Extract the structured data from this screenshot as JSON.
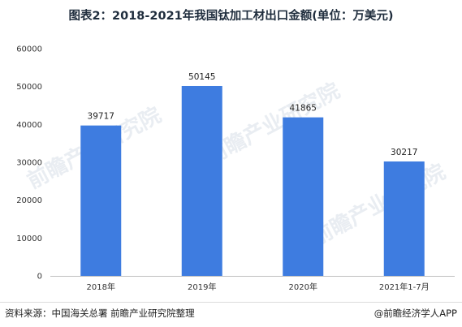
{
  "chart_data": {
    "type": "bar",
    "title": "图表2：2018-2021年我国钛加工材出口金额(单位：万美元)",
    "categories": [
      "2018年",
      "2019年",
      "2020年",
      "2021年1-7月"
    ],
    "series": [
      {
        "values": [
          39717,
          50145,
          41865,
          30217
        ]
      }
    ],
    "xlabel": "",
    "ylabel": "",
    "ylim": [
      0,
      60000
    ],
    "yticks": [
      0,
      10000,
      20000,
      30000,
      40000,
      50000,
      60000
    ],
    "grid": false,
    "bar_color": "#3e7ce0",
    "data_labels": true
  },
  "footer": {
    "source": "资料来源：中国海关总署 前瞻产业研究院整理",
    "brand": "@前瞻经济学人APP"
  },
  "watermark": {
    "text": "前瞻产业研究院"
  }
}
